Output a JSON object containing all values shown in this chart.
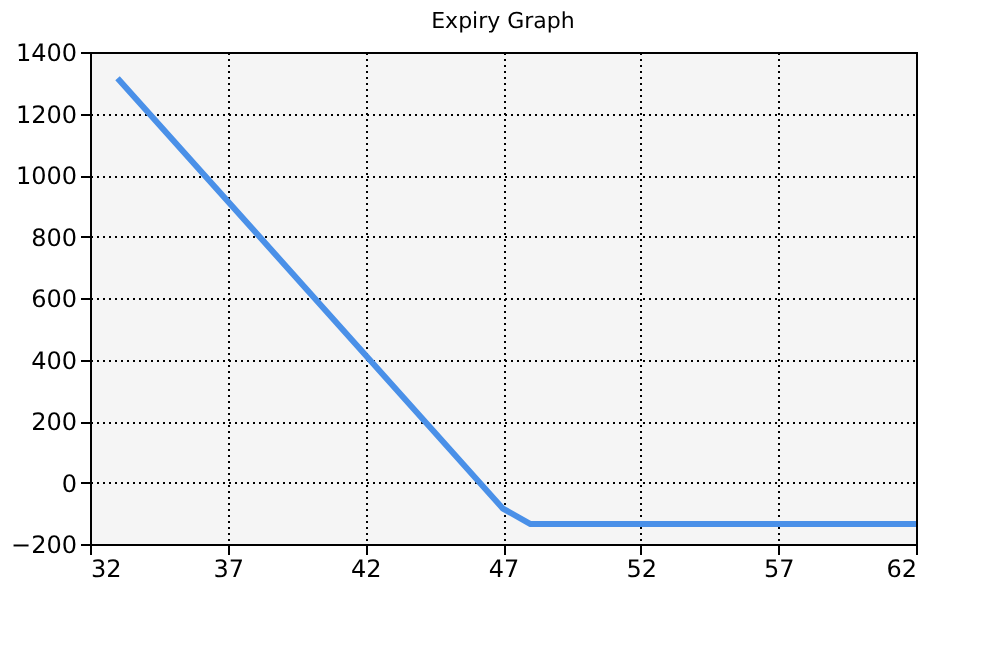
{
  "chart_data": {
    "type": "line",
    "title": "Expiry Graph",
    "x": [
      33,
      47,
      48,
      62
    ],
    "series": [
      {
        "color": "#4a90e8",
        "values": [
          1315,
          -85,
          -135,
          -135
        ]
      }
    ],
    "xlim": [
      32,
      62
    ],
    "xticks": [
      32,
      37,
      42,
      47,
      52,
      57,
      62
    ],
    "ylim": [
      -200,
      1400
    ],
    "yticks": [
      -200,
      0,
      200,
      400,
      600,
      800,
      1000,
      1200,
      1400
    ],
    "grid": true,
    "marker": "none",
    "line_style": "solid"
  }
}
